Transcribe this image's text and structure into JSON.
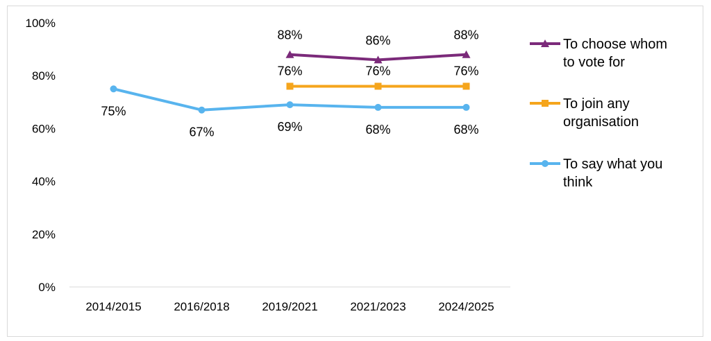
{
  "chart_data": {
    "type": "line",
    "categories": [
      "2014/2015",
      "2016/2018",
      "2019/2021",
      "2021/2023",
      "2024/2025"
    ],
    "ylim": [
      0,
      100
    ],
    "y_ticks": [
      "0%",
      "20%",
      "40%",
      "60%",
      "80%",
      "100%"
    ],
    "y_tick_values": [
      0,
      20,
      40,
      60,
      80,
      100
    ],
    "legend_position": "right",
    "grid": false,
    "series": [
      {
        "name": "To choose whom to vote for",
        "name_lines": [
          "To choose whom",
          "to vote for"
        ],
        "color": "#7b2a7a",
        "marker": "triangle",
        "values": [
          null,
          null,
          88,
          86,
          88
        ],
        "labels": [
          null,
          null,
          "88%",
          "86%",
          "88%"
        ]
      },
      {
        "name": "To join any organisation",
        "name_lines": [
          "To join any",
          "organisation"
        ],
        "color": "#f5a51c",
        "marker": "square",
        "values": [
          null,
          null,
          76,
          76,
          76
        ],
        "labels": [
          null,
          null,
          "76%",
          "76%",
          "76%"
        ]
      },
      {
        "name": "To say what you think",
        "name_lines": [
          "To say what you",
          "think"
        ],
        "color": "#58b4ee",
        "marker": "circle",
        "values": [
          75,
          67,
          69,
          68,
          68
        ],
        "labels": [
          "75%",
          "67%",
          "69%",
          "68%",
          "68%"
        ]
      }
    ]
  }
}
